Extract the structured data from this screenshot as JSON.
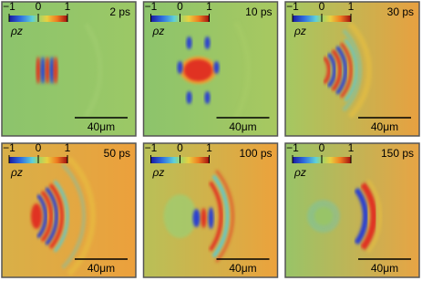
{
  "panels": [
    {
      "time": "2 ps",
      "colorbar_ticks": [
        {
          "value": -1,
          "label": "−1"
        },
        0,
        1
      ],
      "colorbar_label": "ρz",
      "scale_bar": "40μm"
    },
    {
      "time": "10 ps",
      "colorbar_ticks": [
        {
          "value": -1,
          "label": "−1"
        },
        0,
        1
      ],
      "colorbar_label": "ρz",
      "scale_bar": "40μm"
    },
    {
      "time": "30 ps",
      "colorbar_ticks": [
        {
          "value": -1,
          "label": "−1"
        },
        0,
        1
      ],
      "colorbar_label": "ρz",
      "scale_bar": "40μm"
    },
    {
      "time": "50 ps",
      "colorbar_ticks": [
        {
          "value": -1,
          "label": "−1"
        },
        0,
        1
      ],
      "colorbar_label": "ρz",
      "scale_bar": "40μm"
    },
    {
      "time": "100 ps",
      "colorbar_ticks": [
        {
          "value": -1,
          "label": "−1"
        },
        0,
        1
      ],
      "colorbar_label": "ρz",
      "scale_bar": "40μm"
    },
    {
      "time": "150 ps",
      "colorbar_ticks": [
        {
          "value": -1,
          "label": "−1"
        },
        0,
        1
      ],
      "colorbar_label": "ρz",
      "scale_bar": "40μm"
    }
  ]
}
